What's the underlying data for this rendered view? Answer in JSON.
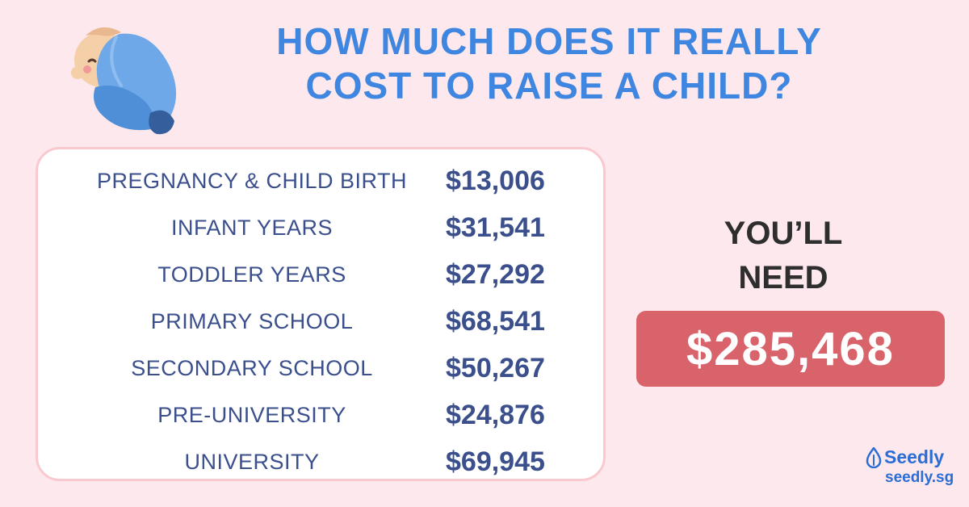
{
  "title": {
    "line1": "HOW MUCH DOES IT REALLY",
    "line2": "COST TO RAISE A CHILD?"
  },
  "costs": [
    {
      "label": "PREGNANCY & CHILD BIRTH",
      "value": "$13,006"
    },
    {
      "label": "INFANT YEARS",
      "value": "$31,541"
    },
    {
      "label": "TODDLER YEARS",
      "value": "$27,292"
    },
    {
      "label": "PRIMARY SCHOOL",
      "value": "$68,541"
    },
    {
      "label": "SECONDARY SCHOOL",
      "value": "$50,267"
    },
    {
      "label": "PRE-UNIVERSITY",
      "value": "$24,876"
    },
    {
      "label": "UNIVERSITY",
      "value": "$69,945"
    }
  ],
  "summary": {
    "line1": "YOU’LL",
    "line2": "NEED",
    "total": "$285,468"
  },
  "brand": {
    "name": "Seedly",
    "site": "seedly.sg"
  },
  "colors": {
    "background": "#fde8ed",
    "title": "#3f86e0",
    "table_text": "#3a4f8c",
    "card_border": "#f9c9cf",
    "total_box": "#d9636b",
    "brand": "#2b6dd6"
  },
  "icons": [
    "swaddled-baby-icon",
    "seed-drop-logo-icon"
  ]
}
